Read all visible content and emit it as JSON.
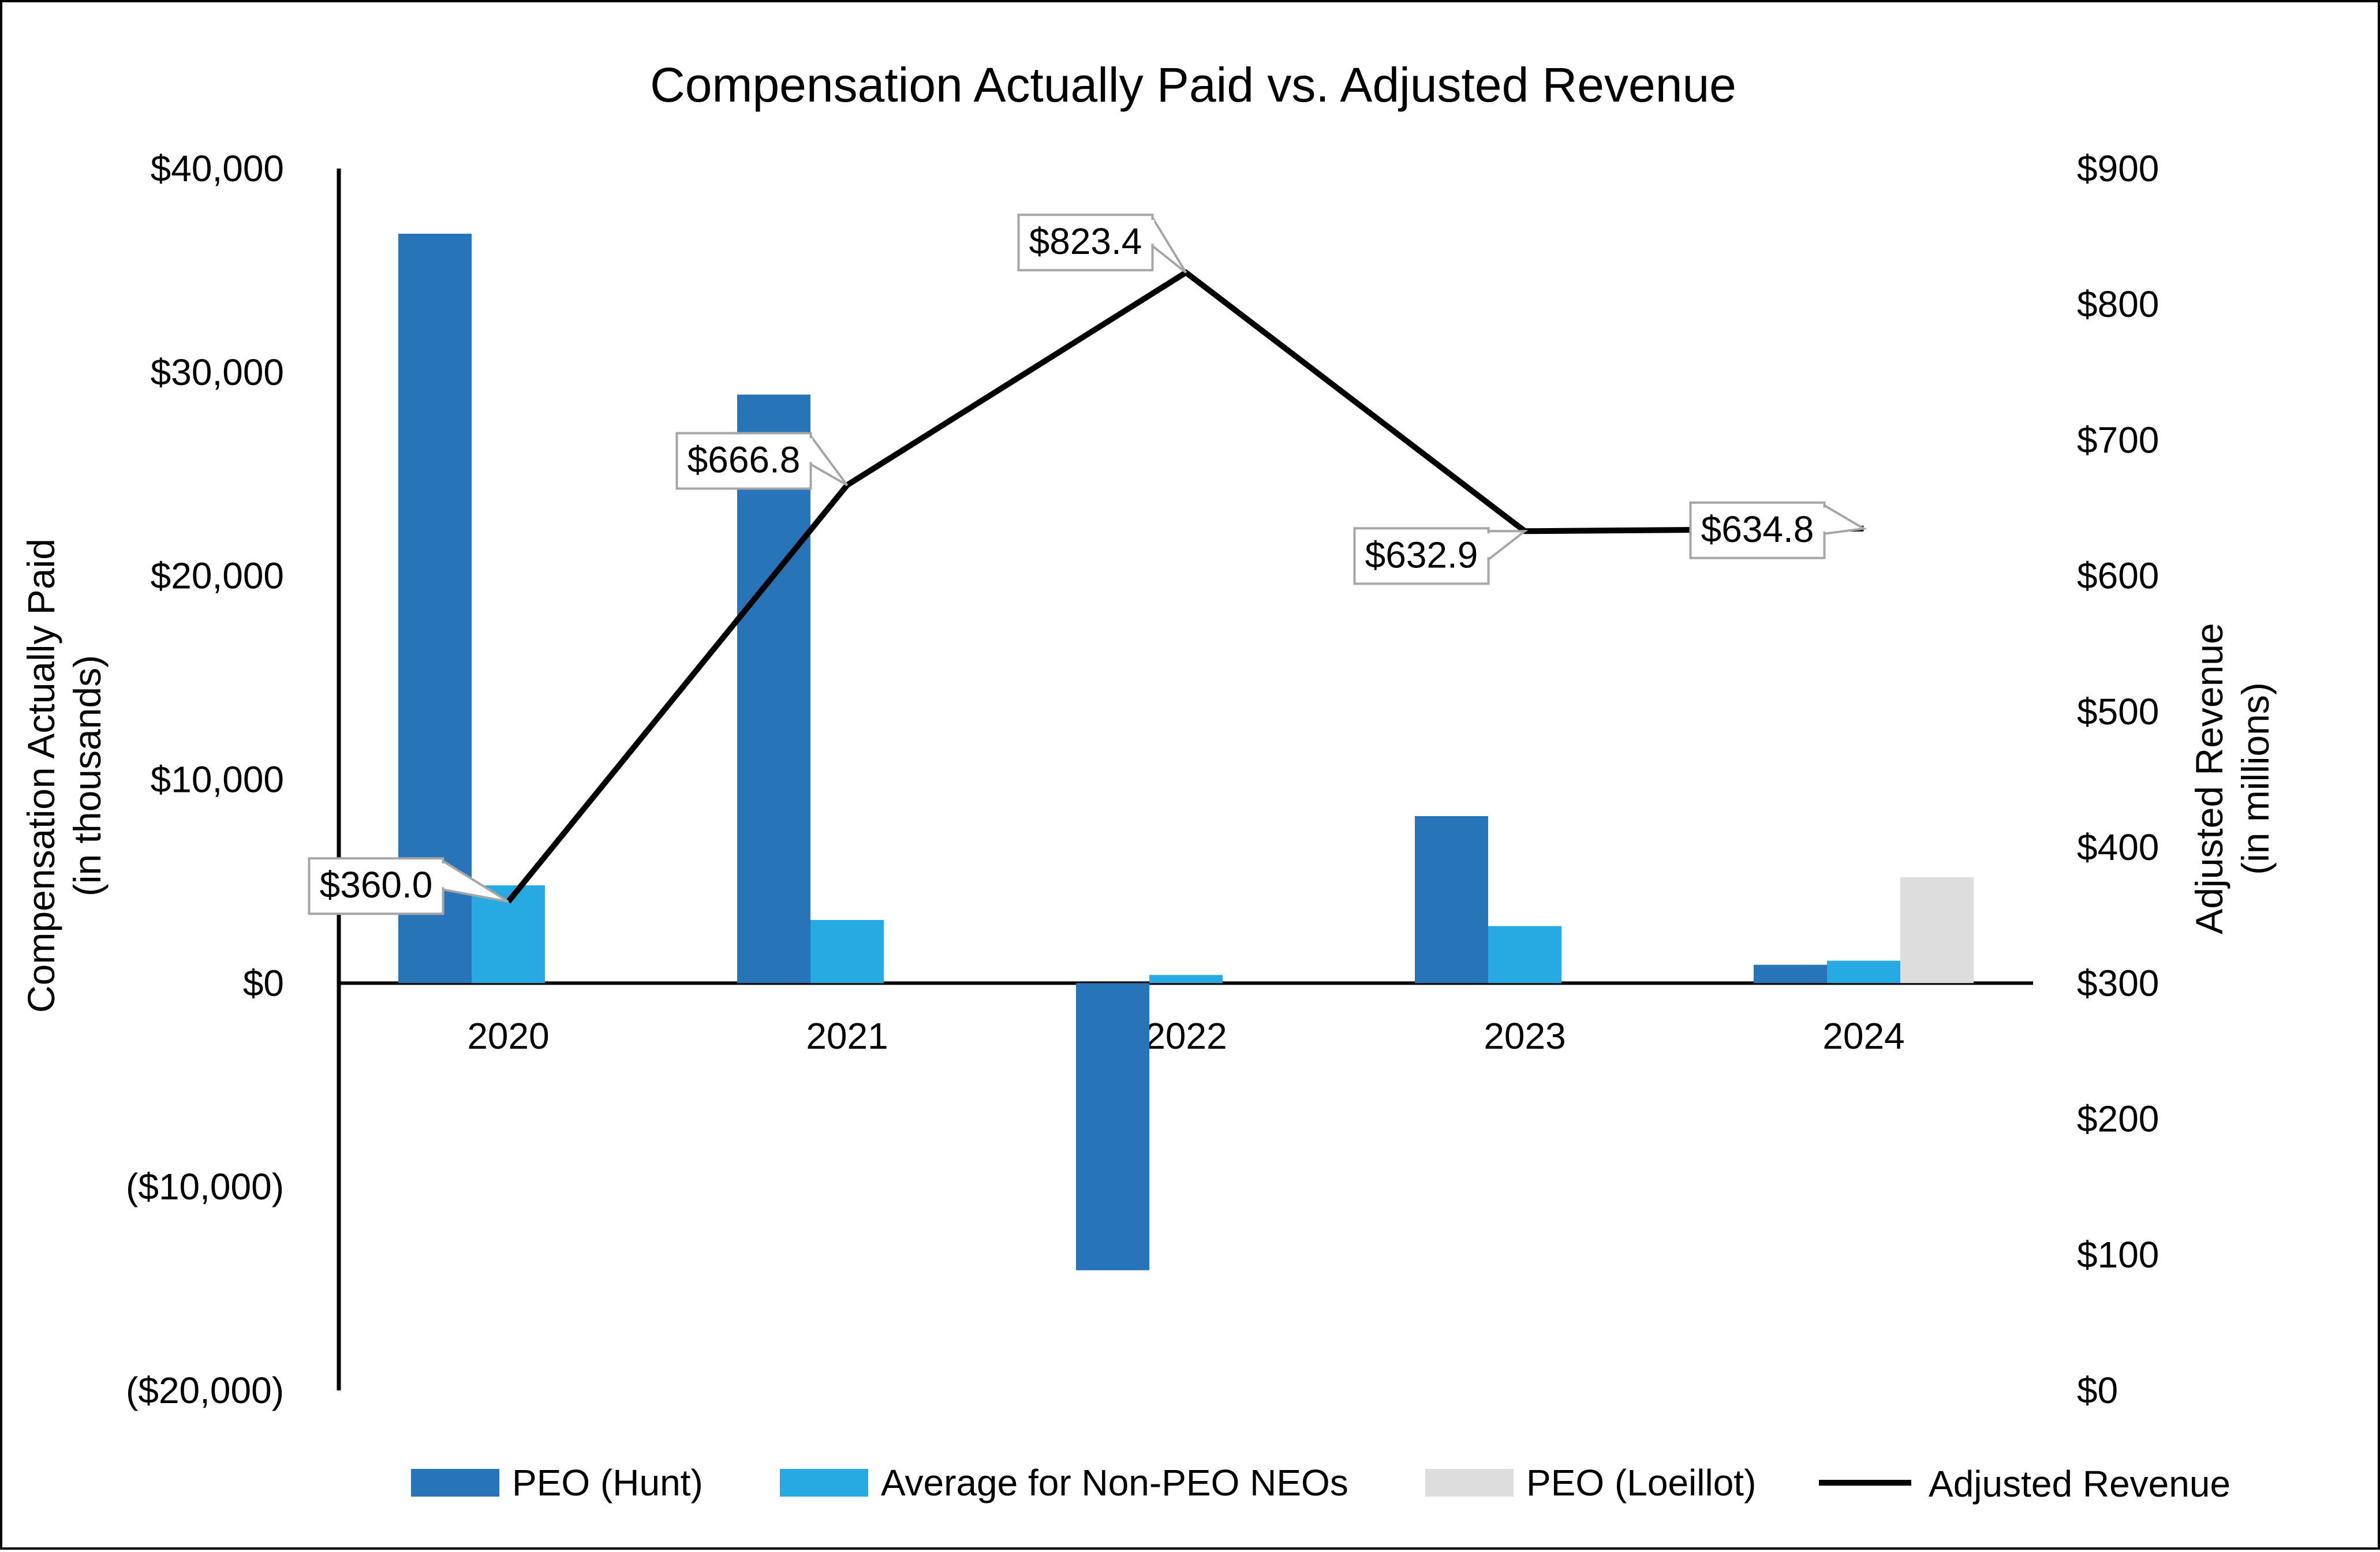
{
  "chart_data": {
    "type": "bar",
    "title": "Compensation Actually Paid vs. Adjusted Revenue",
    "categories": [
      "2020",
      "2021",
      "2022",
      "2023",
      "2024"
    ],
    "y_left": {
      "label_lines": [
        "Compensation Actually Paid",
        "(in thousands)"
      ],
      "ylim": [
        -20000,
        40000
      ],
      "ticks": [
        {
          "value": 40000,
          "label": "$40,000"
        },
        {
          "value": 30000,
          "label": "$30,000"
        },
        {
          "value": 20000,
          "label": "$20,000"
        },
        {
          "value": 10000,
          "label": "$10,000"
        },
        {
          "value": 0,
          "label": "$0"
        },
        {
          "value": -10000,
          "label": "($10,000)"
        },
        {
          "value": -20000,
          "label": "($20,000)"
        }
      ]
    },
    "y_right": {
      "label_lines": [
        "Adjusted Revenue",
        "(in millions)"
      ],
      "ylim": [
        0,
        900
      ],
      "ticks": [
        {
          "value": 900,
          "label": "$900"
        },
        {
          "value": 800,
          "label": "$800"
        },
        {
          "value": 700,
          "label": "$700"
        },
        {
          "value": 600,
          "label": "$600"
        },
        {
          "value": 500,
          "label": "$500"
        },
        {
          "value": 400,
          "label": "$400"
        },
        {
          "value": 300,
          "label": "$300"
        },
        {
          "value": 200,
          "label": "$200"
        },
        {
          "value": 100,
          "label": "$100"
        },
        {
          "value": 0,
          "label": "$0"
        }
      ]
    },
    "series": [
      {
        "name": "PEO (Hunt)",
        "kind": "bar",
        "axis": "left",
        "color": "#2874B8",
        "values": [
          36800,
          28900,
          -14100,
          8200,
          900
        ]
      },
      {
        "name": "Average for Non-PEO NEOs",
        "kind": "bar",
        "axis": "left",
        "color": "#27AAE1",
        "values": [
          4800,
          3100,
          400,
          2800,
          1100
        ]
      },
      {
        "name": "PEO (Loeillot)",
        "kind": "bar",
        "axis": "left",
        "color": "#DDDDDE",
        "values": [
          null,
          null,
          null,
          null,
          5200
        ]
      },
      {
        "name": "Adjusted Revenue",
        "kind": "line",
        "axis": "right",
        "color": "#000000",
        "values": [
          360.0,
          666.8,
          823.4,
          632.9,
          634.8
        ],
        "labels": [
          "$360.0",
          "$666.8",
          "$823.4",
          "$632.9",
          "$634.8"
        ]
      }
    ],
    "legend_position": "bottom",
    "grid": false
  }
}
